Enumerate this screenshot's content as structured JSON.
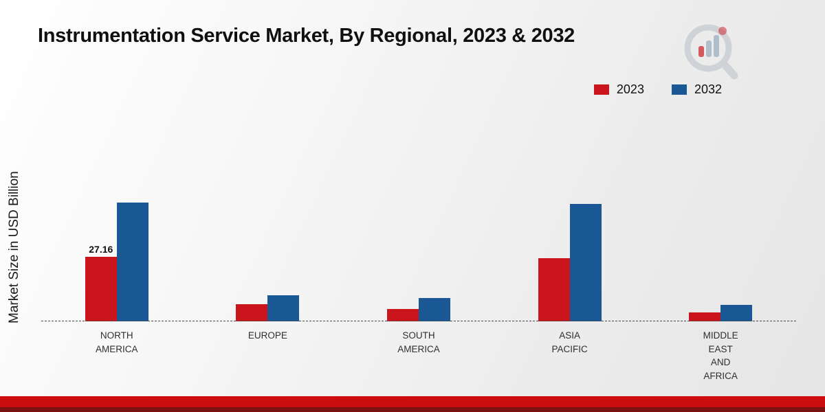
{
  "page": {
    "title": "Instrumentation Service Market, By Regional, 2023 & 2032",
    "y_axis_label": "Market Size in USD Billion"
  },
  "colors": {
    "series_2023": "#c9151b",
    "series_2032": "#1a5795",
    "footer_red": "#cc0d0d",
    "footer_maroon": "#7c1113",
    "baseline": "#4a4a4a"
  },
  "legend": {
    "items": [
      {
        "label": "2023",
        "color": "#c9151b"
      },
      {
        "label": "2032",
        "color": "#1a5795"
      }
    ]
  },
  "chart_data": {
    "type": "bar",
    "title": "Instrumentation Service Market, By Regional, 2023 & 2032",
    "xlabel": "",
    "ylabel": "Market Size in USD Billion",
    "categories": [
      [
        "NORTH",
        "AMERICA"
      ],
      [
        "EUROPE"
      ],
      [
        "SOUTH",
        "AMERICA"
      ],
      [
        "ASIA",
        "PACIFIC"
      ],
      [
        "MIDDLE",
        "EAST",
        "AND",
        "AFRICA"
      ]
    ],
    "series": [
      {
        "name": "2023",
        "color": "#c9151b",
        "values": [
          27.16,
          7.2,
          5.3,
          26.5,
          3.9
        ]
      },
      {
        "name": "2032",
        "color": "#1a5795",
        "values": [
          50.0,
          11.0,
          9.8,
          49.5,
          6.8
        ]
      }
    ],
    "annotations": [
      {
        "series": "2023",
        "category_index": 0,
        "text": "27.16"
      }
    ],
    "ylim": [
      0,
      55
    ],
    "grid": false,
    "legend_position": "top-right",
    "baseline_style": "dashed"
  }
}
